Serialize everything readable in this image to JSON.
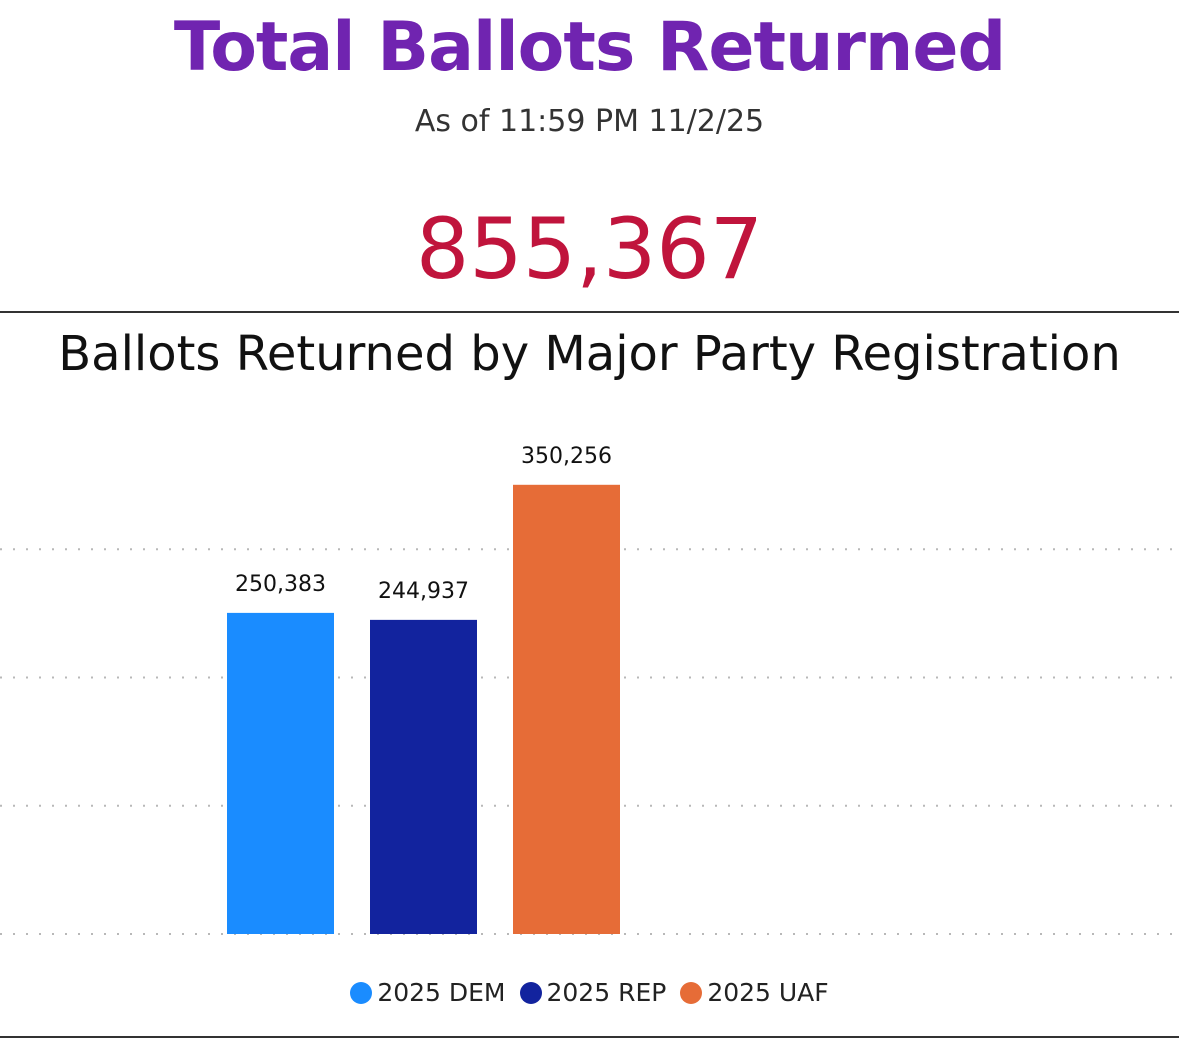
{
  "header": {
    "title": "Total Ballots Returned",
    "subtitle": "As of 11:59 PM 11/2/25",
    "total": "855,367"
  },
  "colors": {
    "title": "#7024b0",
    "total": "#c0143c",
    "dem": "#1a8cff",
    "rep": "#12239e",
    "uaf": "#e66c37"
  },
  "chart_data": {
    "type": "bar",
    "title": "Ballots Returned by Major Party Registration",
    "categories": [
      "2025 DEM",
      "2025 REP",
      "2025 UAF"
    ],
    "values": [
      250383,
      244937,
      350256
    ],
    "data_labels": [
      "250,383",
      "244,937",
      "350,256"
    ],
    "colors": [
      "#1a8cff",
      "#12239e",
      "#e66c37"
    ],
    "ylim": [
      0,
      400000
    ],
    "grid": true,
    "legend": "bottom-center",
    "xlabel": "",
    "ylabel": ""
  }
}
